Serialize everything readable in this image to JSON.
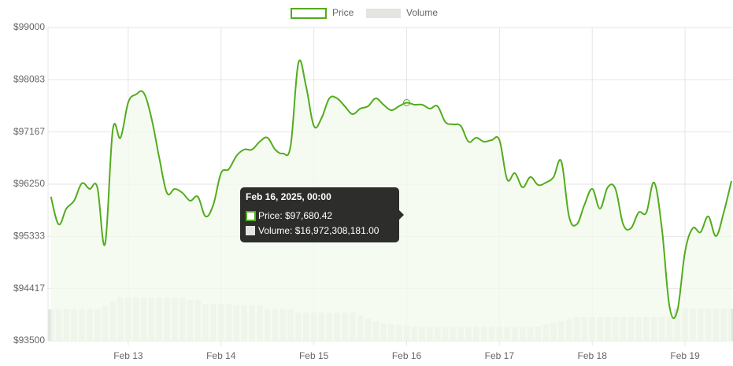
{
  "chart_data": {
    "type": "line",
    "x": [
      "2025-02-12T04:00",
      "2025-02-12T06:00",
      "2025-02-12T08:00",
      "2025-02-12T10:00",
      "2025-02-12T12:00",
      "2025-02-12T14:00",
      "2025-02-12T16:00",
      "2025-02-12T18:00",
      "2025-02-12T20:00",
      "2025-02-12T22:00",
      "2025-02-13T00:00",
      "2025-02-13T02:00",
      "2025-02-13T04:00",
      "2025-02-13T06:00",
      "2025-02-13T08:00",
      "2025-02-13T10:00",
      "2025-02-13T12:00",
      "2025-02-13T14:00",
      "2025-02-13T16:00",
      "2025-02-13T18:00",
      "2025-02-13T20:00",
      "2025-02-13T22:00",
      "2025-02-14T00:00",
      "2025-02-14T02:00",
      "2025-02-14T04:00",
      "2025-02-14T06:00",
      "2025-02-14T08:00",
      "2025-02-14T10:00",
      "2025-02-14T12:00",
      "2025-02-14T14:00",
      "2025-02-14T16:00",
      "2025-02-14T18:00",
      "2025-02-14T20:00",
      "2025-02-14T22:00",
      "2025-02-15T00:00",
      "2025-02-15T02:00",
      "2025-02-15T04:00",
      "2025-02-15T06:00",
      "2025-02-15T08:00",
      "2025-02-15T10:00",
      "2025-02-15T12:00",
      "2025-02-15T14:00",
      "2025-02-15T16:00",
      "2025-02-15T18:00",
      "2025-02-15T20:00",
      "2025-02-15T22:00",
      "2025-02-16T00:00",
      "2025-02-16T02:00",
      "2025-02-16T04:00",
      "2025-02-16T06:00",
      "2025-02-16T08:00",
      "2025-02-16T10:00",
      "2025-02-16T12:00",
      "2025-02-16T14:00",
      "2025-02-16T16:00",
      "2025-02-16T18:00",
      "2025-02-16T20:00",
      "2025-02-16T22:00",
      "2025-02-17T00:00",
      "2025-02-17T02:00",
      "2025-02-17T04:00",
      "2025-02-17T06:00",
      "2025-02-17T08:00",
      "2025-02-17T10:00",
      "2025-02-17T12:00",
      "2025-02-17T14:00",
      "2025-02-17T16:00",
      "2025-02-17T18:00",
      "2025-02-17T20:00",
      "2025-02-17T22:00",
      "2025-02-18T00:00",
      "2025-02-18T02:00",
      "2025-02-18T04:00",
      "2025-02-18T06:00",
      "2025-02-18T08:00",
      "2025-02-18T10:00",
      "2025-02-18T12:00",
      "2025-02-18T14:00",
      "2025-02-18T16:00",
      "2025-02-18T18:00",
      "2025-02-18T20:00",
      "2025-02-18T22:00",
      "2025-02-19T00:00",
      "2025-02-19T02:00",
      "2025-02-19T04:00",
      "2025-02-19T06:00",
      "2025-02-19T08:00",
      "2025-02-19T10:00",
      "2025-02-19T12:00"
    ],
    "series": [
      {
        "name": "Price",
        "color": "#52ac1c",
        "fill": "#f3f9ee",
        "values": [
          96029,
          95545,
          95822,
          95960,
          96264,
          96167,
          96195,
          95200,
          97204,
          97066,
          97687,
          97826,
          97853,
          97411,
          96720,
          96098,
          96167,
          96098,
          95960,
          96029,
          95684,
          95891,
          96444,
          96513,
          96748,
          96858,
          96858,
          96996,
          97066,
          96858,
          96789,
          96927,
          98378,
          97964,
          97273,
          97411,
          97757,
          97757,
          97618,
          97480,
          97577,
          97618,
          97757,
          97646,
          97549,
          97618,
          97680.42,
          97646,
          97646,
          97577,
          97618,
          97342,
          97300,
          97273,
          96996,
          97066,
          96996,
          97024,
          97024,
          96333,
          96444,
          96195,
          96375,
          96236,
          96278,
          96375,
          96651,
          95684,
          95545,
          95891,
          96167,
          95822,
          96195,
          96167,
          95545,
          95476,
          95753,
          95753,
          96278,
          95476,
          94094,
          94025,
          95062,
          95476,
          95407,
          95684,
          95338,
          95753,
          96305
        ]
      },
      {
        "name": "Volume",
        "color": "#e3e5e0",
        "axis": "y2",
        "values": [
          34000000000,
          34000000000,
          34000000000,
          34000000000,
          34000000000,
          34000000000,
          34000000000,
          37300000000,
          42400000000,
          46700000000,
          46700000000,
          46700000000,
          46700000000,
          46700000000,
          46700000000,
          46700000000,
          46700000000,
          46700000000,
          44100000000,
          44100000000,
          39900000000,
          39900000000,
          39900000000,
          39900000000,
          38200000000,
          38200000000,
          38200000000,
          38200000000,
          33900000000,
          33900000000,
          33900000000,
          33900000000,
          30500000000,
          30500000000,
          30500000000,
          30500000000,
          30500000000,
          30500000000,
          30500000000,
          30500000000,
          27200000000,
          23800000000,
          21200000000,
          18700000000,
          17800000000,
          17400000000,
          16972308181,
          15300000000,
          15300000000,
          15300000000,
          15300000000,
          15300000000,
          15300000000,
          15300000000,
          15300000000,
          15300000000,
          15300000000,
          15300000000,
          15300000000,
          15300000000,
          15300000000,
          15300000000,
          15300000000,
          15300000000,
          17800000000,
          19500000000,
          21200000000,
          23800000000,
          25500000000,
          25500000000,
          25500000000,
          25500000000,
          25500000000,
          25500000000,
          25500000000,
          25500000000,
          25500000000,
          25500000000,
          25500000000,
          25500000000,
          25500000000,
          34800000000,
          34800000000,
          34800000000,
          34800000000,
          34800000000,
          34800000000,
          34800000000,
          34800000000
        ]
      }
    ],
    "xlim": [
      "2025-02-12T03:15",
      "2025-02-19T12:12"
    ],
    "xticks": [
      {
        "value": "2025-02-13T00:00",
        "label": "Feb 13"
      },
      {
        "value": "2025-02-14T00:00",
        "label": "Feb 14"
      },
      {
        "value": "2025-02-15T00:00",
        "label": "Feb 15"
      },
      {
        "value": "2025-02-16T00:00",
        "label": "Feb 16"
      },
      {
        "value": "2025-02-17T00:00",
        "label": "Feb 17"
      },
      {
        "value": "2025-02-18T00:00",
        "label": "Feb 18"
      },
      {
        "value": "2025-02-19T00:00",
        "label": "Feb 19"
      }
    ],
    "ylim": [
      93500,
      99000
    ],
    "yticks": [
      {
        "value": 93500,
        "label": "$93500"
      },
      {
        "value": 94417,
        "label": "$94417"
      },
      {
        "value": 95333,
        "label": "$95333"
      },
      {
        "value": 96250,
        "label": "$96250"
      },
      {
        "value": 97167,
        "label": "$97167"
      },
      {
        "value": 98083,
        "label": "$98083"
      },
      {
        "value": 99000,
        "label": "$99000"
      }
    ],
    "y2lim": [
      0,
      338000000000
    ],
    "grid": true,
    "legend": "top",
    "tooltip": {
      "index": 46,
      "title": "Feb 16, 2025, 00:00",
      "lines": [
        "Price: $97,680.42",
        "Volume: $16,972,308,181.00"
      ]
    }
  }
}
